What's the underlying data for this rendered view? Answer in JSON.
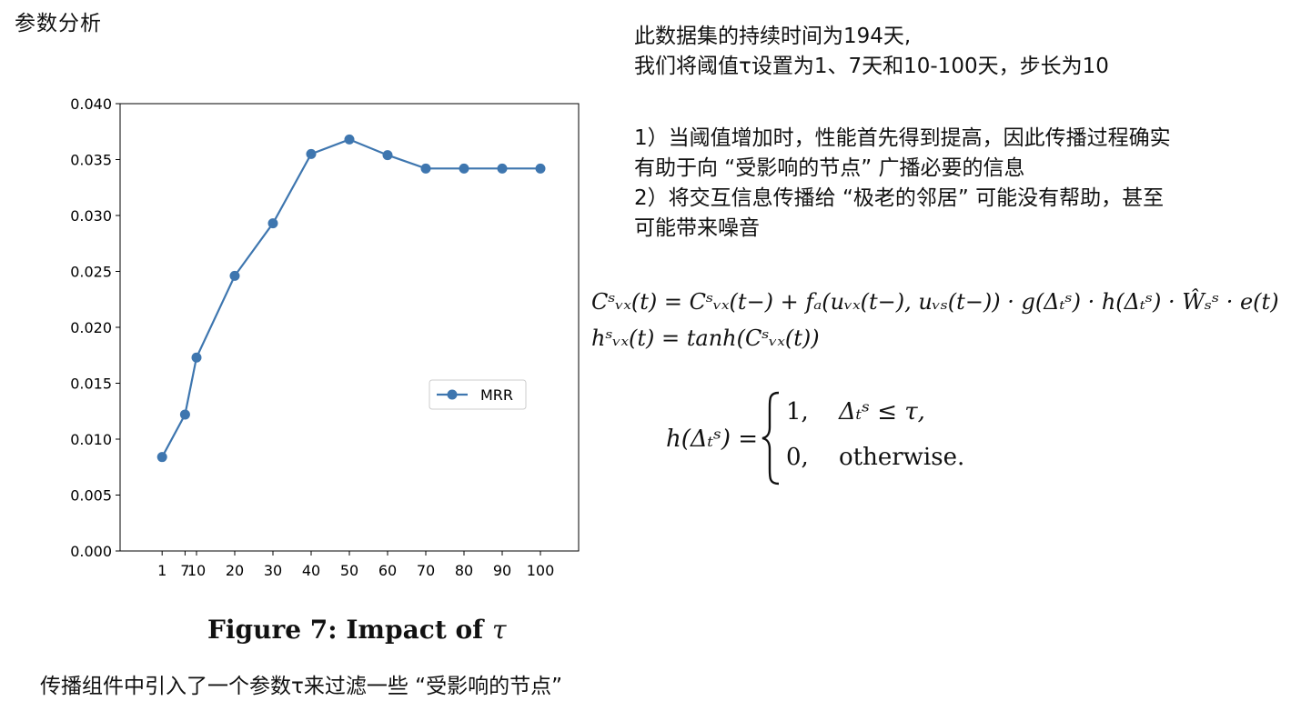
{
  "slide": {
    "title": "参数分析",
    "bottom_note": "传播组件中引入了一个参数τ来过滤一些 “受影响的节点”"
  },
  "right_text": {
    "line1": "此数据集的持续时间为194天,",
    "line2": "我们将阈值τ设置为1、7天和10-100天，步长为10",
    "line3": "1）当阈值增加时，性能首先得到提高，因此传播过程确实",
    "line4": "有助于向 “受影响的节点” 广播必要的信息",
    "line5": "2）将交互信息传播给 “极老的邻居” 可能没有帮助，甚至",
    "line6": "可能带来噪音"
  },
  "equations": {
    "eq1": "Cˢᵥₓ(t) = Cˢᵥₓ(t−) + fₐ(uᵥₓ(t−), uᵥₛ(t−)) · g(Δₜˢ) · h(Δₜˢ) · Ŵₛˢ · e(t)",
    "eq2": "hˢᵥₓ(t) = tanh(Cˢᵥₓ(t))",
    "piecewise_lhs": "h(Δₜˢ) =",
    "case1_value": "1,",
    "case1_condition": "Δₜˢ ≤ τ,",
    "case2_value": "0,",
    "case2_condition": "otherwise."
  },
  "figure_caption": {
    "prefix": "Figure 7: Impact of ",
    "symbol": "τ"
  },
  "chart_data": {
    "type": "line",
    "x": [
      1,
      7,
      10,
      20,
      30,
      40,
      50,
      60,
      70,
      80,
      90,
      100
    ],
    "x_tick_labels": [
      "1",
      "7",
      "10",
      "20",
      "30",
      "40",
      "50",
      "60",
      "70",
      "80",
      "90",
      "100"
    ],
    "series": [
      {
        "name": "MRR",
        "values": [
          0.0084,
          0.0122,
          0.0173,
          0.0246,
          0.0293,
          0.0355,
          0.0368,
          0.0354,
          0.0342,
          0.0342,
          0.0342,
          0.0342
        ]
      }
    ],
    "ylim": [
      0,
      0.04
    ],
    "y_ticks": [
      0.0,
      0.005,
      0.01,
      0.015,
      0.02,
      0.025,
      0.03,
      0.035,
      0.04
    ],
    "y_tick_labels": [
      "0.000",
      "0.005",
      "0.010",
      "0.015",
      "0.020",
      "0.025",
      "0.030",
      "0.035",
      "0.040"
    ],
    "xlabel": "",
    "ylabel": "",
    "grid": false,
    "legend_position": "center-right",
    "line_color": "#3e76af"
  }
}
